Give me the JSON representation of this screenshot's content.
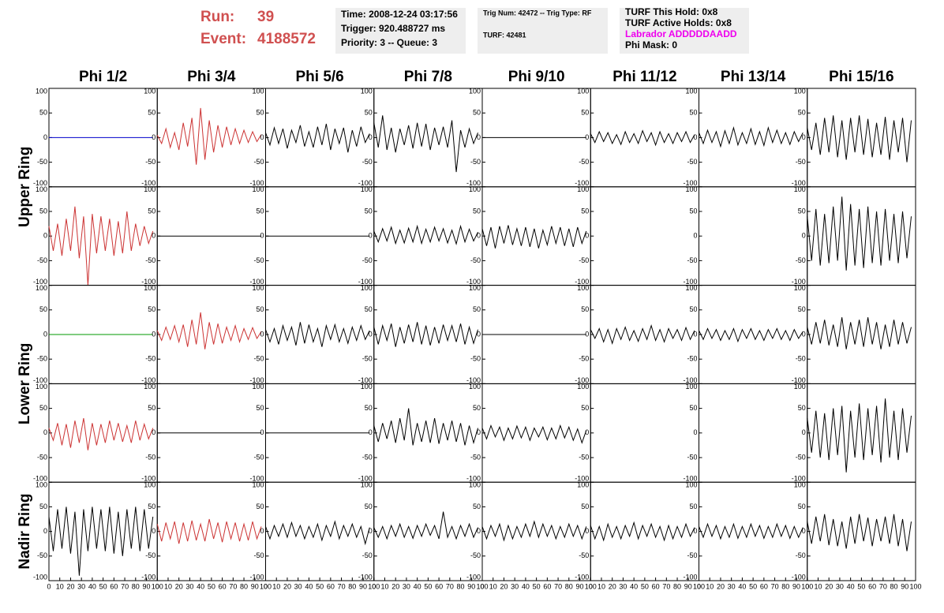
{
  "header": {
    "run_label": "Run:",
    "run": "39",
    "event_label": "Event:",
    "event": "4188572",
    "time_box": [
      "Time: 2008-12-24 03:17:56",
      "Trigger: 920.488727 ms",
      "Priority: 3 -- Queue: 3"
    ],
    "trig_box": [
      "Trig Num: 42472 -- Trig Type: RF",
      "TURF: 42481"
    ],
    "turf_box": [
      "TURF This Hold: 0x8",
      "TURF Active Holds: 0x8",
      "Labrador ADDDDDAADD",
      "Phi Mask: 0"
    ]
  },
  "chart_data": {
    "type": "line",
    "columns": [
      "Phi 1/2",
      "Phi 3/4",
      "Phi 5/6",
      "Phi 7/8",
      "Phi 9/10",
      "Phi 11/12",
      "Phi 13/14",
      "Phi 15/16"
    ],
    "row_labels": [
      "Upper Ring",
      "Lower Ring",
      "Nadir Ring"
    ],
    "x": [
      0,
      4,
      8,
      12,
      16,
      20,
      24,
      28,
      32,
      36,
      40,
      44,
      48,
      52,
      56,
      60,
      64,
      68,
      72,
      76,
      80,
      84,
      88,
      92,
      96
    ],
    "xlim": [
      0,
      100
    ],
    "xticks": [
      0,
      10,
      20,
      30,
      40,
      50,
      60,
      70,
      80,
      90,
      100
    ],
    "ylim": [
      -100,
      100
    ],
    "yticks": [
      -100,
      -50,
      0,
      50,
      100
    ],
    "panels": [
      [
        {
          "color": "#0000cc",
          "values": [
            0,
            0,
            0,
            0,
            0,
            0,
            0,
            0,
            0,
            0,
            0,
            0,
            0,
            0,
            0,
            0,
            0,
            0,
            0,
            0,
            0,
            0,
            0,
            0,
            0
          ]
        },
        {
          "color": "#cc3333",
          "values": [
            5,
            -12,
            18,
            -20,
            10,
            -25,
            30,
            -18,
            40,
            -55,
            60,
            -45,
            35,
            -30,
            25,
            -20,
            22,
            -15,
            18,
            -12,
            15,
            -10,
            12,
            -8,
            6
          ]
        },
        {
          "color": "#000000",
          "values": [
            10,
            -15,
            20,
            -12,
            18,
            -22,
            15,
            -10,
            25,
            -18,
            12,
            -20,
            22,
            -15,
            28,
            -25,
            18,
            -12,
            20,
            -30,
            15,
            -18,
            22,
            -10,
            8
          ]
        },
        {
          "color": "#000000",
          "values": [
            30,
            -20,
            45,
            -25,
            20,
            -30,
            18,
            -15,
            25,
            -22,
            30,
            -18,
            28,
            -25,
            20,
            -15,
            22,
            -20,
            35,
            -70,
            15,
            -20,
            18,
            -12,
            10
          ]
        },
        {
          "color": "#000000",
          "values": [
            0,
            0,
            0,
            0,
            0,
            0,
            0,
            0,
            0,
            0,
            0,
            0,
            0,
            0,
            0,
            0,
            0,
            0,
            0,
            0,
            0,
            0,
            0,
            0,
            0
          ]
        },
        {
          "color": "#000000",
          "values": [
            8,
            -10,
            12,
            -8,
            10,
            -12,
            6,
            -14,
            12,
            -10,
            8,
            -12,
            14,
            -8,
            10,
            -15,
            12,
            -10,
            8,
            -12,
            10,
            -8,
            12,
            -10,
            6
          ]
        },
        {
          "color": "#000000",
          "values": [
            10,
            -12,
            15,
            -10,
            12,
            -18,
            14,
            -12,
            20,
            -15,
            10,
            -12,
            18,
            -14,
            12,
            -16,
            20,
            -10,
            15,
            -12,
            10,
            -14,
            12,
            -8,
            10
          ]
        },
        {
          "color": "#000000",
          "values": [
            20,
            -25,
            30,
            -35,
            40,
            -30,
            45,
            -40,
            35,
            -45,
            40,
            -30,
            45,
            -35,
            38,
            -40,
            30,
            -35,
            42,
            -45,
            35,
            -30,
            40,
            -50,
            35
          ]
        }
      ],
      [
        {
          "color": "#cc3333",
          "values": [
            20,
            -30,
            25,
            -40,
            35,
            -30,
            60,
            -45,
            40,
            -100,
            45,
            -35,
            40,
            -30,
            35,
            -40,
            30,
            -35,
            50,
            -30,
            25,
            -20,
            20,
            -15,
            10
          ]
        },
        {
          "color": "#000000",
          "values": [
            0,
            0,
            0,
            0,
            0,
            0,
            0,
            0,
            0,
            0,
            0,
            0,
            0,
            0,
            0,
            0,
            0,
            0,
            0,
            0,
            0,
            0,
            0,
            0,
            0
          ]
        },
        {
          "color": "#000000",
          "values": [
            0,
            0,
            0,
            0,
            0,
            0,
            0,
            0,
            0,
            0,
            0,
            0,
            0,
            0,
            0,
            0,
            0,
            0,
            0,
            0,
            0,
            0,
            0,
            0,
            0
          ]
        },
        {
          "color": "#000000",
          "values": [
            10,
            -12,
            15,
            -10,
            18,
            -15,
            12,
            -14,
            16,
            -12,
            20,
            -15,
            14,
            -12,
            18,
            -10,
            15,
            -14,
            12,
            -16,
            20,
            -12,
            14,
            -10,
            8
          ]
        },
        {
          "color": "#000000",
          "values": [
            15,
            -20,
            18,
            -25,
            20,
            -15,
            22,
            -18,
            15,
            -20,
            18,
            -22,
            15,
            -25,
            12,
            -18,
            20,
            -15,
            18,
            -20,
            15,
            -22,
            18,
            -15,
            10
          ]
        },
        null,
        null,
        {
          "color": "#000000",
          "values": [
            40,
            -50,
            55,
            -60,
            45,
            -55,
            60,
            -50,
            80,
            -70,
            65,
            -60,
            55,
            -65,
            60,
            -55,
            50,
            -60,
            55,
            -50,
            45,
            -55,
            50,
            -45,
            40
          ]
        }
      ],
      [
        {
          "color": "#009900",
          "values": [
            0,
            0,
            0,
            0,
            0,
            0,
            0,
            0,
            0,
            0,
            0,
            0,
            0,
            0,
            0,
            0,
            0,
            0,
            0,
            0,
            0,
            0,
            0,
            0,
            0
          ]
        },
        {
          "color": "#cc3333",
          "values": [
            8,
            -12,
            15,
            -10,
            18,
            -15,
            20,
            -25,
            30,
            -20,
            45,
            -30,
            25,
            -20,
            22,
            -18,
            15,
            -12,
            18,
            -15,
            12,
            -10,
            14,
            -8,
            6
          ]
        },
        {
          "color": "#000000",
          "values": [
            10,
            -15,
            12,
            -20,
            18,
            -12,
            15,
            -22,
            25,
            -18,
            20,
            -15,
            12,
            -25,
            18,
            -10,
            20,
            -15,
            12,
            -18,
            15,
            -12,
            18,
            -10,
            8
          ]
        },
        {
          "color": "#000000",
          "values": [
            15,
            -20,
            18,
            -12,
            22,
            -25,
            15,
            -18,
            20,
            -15,
            25,
            -20,
            18,
            -22,
            15,
            -18,
            20,
            -12,
            18,
            -15,
            22,
            -20,
            15,
            -18,
            10
          ]
        },
        {
          "color": "#000000",
          "values": [
            0,
            0,
            0,
            0,
            0,
            0,
            0,
            0,
            0,
            0,
            0,
            0,
            0,
            0,
            0,
            0,
            0,
            0,
            0,
            0,
            0,
            0,
            0,
            0,
            0
          ]
        },
        {
          "color": "#000000",
          "values": [
            10,
            -8,
            12,
            -15,
            10,
            -18,
            12,
            -10,
            15,
            -12,
            8,
            -14,
            12,
            -10,
            18,
            -12,
            10,
            -15,
            12,
            -8,
            10,
            -12,
            14,
            -10,
            8
          ]
        },
        {
          "color": "#000000",
          "values": [
            8,
            -10,
            12,
            -8,
            10,
            -12,
            8,
            -10,
            12,
            -14,
            10,
            -8,
            12,
            -10,
            8,
            -12,
            10,
            -8,
            12,
            -10,
            8,
            -12,
            10,
            -8,
            6
          ]
        },
        {
          "color": "#000000",
          "values": [
            15,
            -20,
            25,
            -18,
            30,
            -22,
            20,
            -25,
            35,
            -30,
            25,
            -20,
            30,
            -25,
            35,
            -20,
            25,
            -30,
            20,
            -25,
            30,
            -20,
            25,
            -18,
            15
          ]
        }
      ],
      [
        {
          "color": "#cc3333",
          "values": [
            10,
            -15,
            20,
            -25,
            18,
            -30,
            25,
            -20,
            30,
            -35,
            20,
            -25,
            18,
            -20,
            25,
            -15,
            20,
            -18,
            15,
            -20,
            25,
            -15,
            18,
            -12,
            10
          ]
        },
        {
          "color": "#000000",
          "values": [
            0,
            0,
            0,
            0,
            0,
            0,
            0,
            0,
            0,
            0,
            0,
            0,
            0,
            0,
            0,
            0,
            0,
            0,
            0,
            0,
            0,
            0,
            0,
            0,
            0
          ]
        },
        {
          "color": "#000000",
          "values": [
            0,
            0,
            0,
            0,
            0,
            0,
            0,
            0,
            0,
            0,
            0,
            0,
            0,
            0,
            0,
            0,
            0,
            0,
            0,
            0,
            0,
            0,
            0,
            0,
            0
          ]
        },
        {
          "color": "#000000",
          "values": [
            15,
            -18,
            20,
            -12,
            25,
            -20,
            30,
            -15,
            50,
            -25,
            20,
            -18,
            25,
            -20,
            30,
            -22,
            20,
            -15,
            25,
            -18,
            20,
            -25,
            15,
            -20,
            10
          ]
        },
        {
          "color": "#000000",
          "values": [
            10,
            -12,
            15,
            -8,
            12,
            -15,
            10,
            -12,
            14,
            -10,
            12,
            -15,
            10,
            -8,
            12,
            -14,
            10,
            -12,
            15,
            -10,
            12,
            -15,
            8,
            -20,
            5
          ]
        },
        null,
        null,
        {
          "color": "#000000",
          "values": [
            30,
            -40,
            45,
            -50,
            40,
            -55,
            50,
            -45,
            55,
            -80,
            45,
            -50,
            60,
            -55,
            50,
            -45,
            55,
            -60,
            70,
            -50,
            45,
            -55,
            50,
            -40,
            35
          ]
        }
      ],
      [
        {
          "color": "#000000",
          "values": [
            30,
            -40,
            45,
            -35,
            50,
            -45,
            40,
            -90,
            45,
            -40,
            50,
            -35,
            45,
            -40,
            50,
            -45,
            40,
            -50,
            45,
            -35,
            50,
            -40,
            45,
            -35,
            30
          ]
        },
        {
          "color": "#cc3333",
          "values": [
            15,
            -20,
            18,
            -15,
            20,
            -25,
            18,
            -20,
            22,
            -18,
            15,
            -20,
            25,
            -15,
            18,
            -22,
            20,
            -15,
            18,
            -20,
            15,
            -18,
            20,
            -15,
            10
          ]
        },
        {
          "color": "#000000",
          "values": [
            10,
            -15,
            12,
            -10,
            15,
            -12,
            18,
            -10,
            12,
            -15,
            10,
            -12,
            15,
            -18,
            12,
            -10,
            20,
            -15,
            12,
            -10,
            15,
            -12,
            10,
            -25,
            8
          ]
        },
        {
          "color": "#000000",
          "values": [
            8,
            -12,
            10,
            -15,
            12,
            -10,
            15,
            -12,
            10,
            -14,
            12,
            -10,
            15,
            -8,
            12,
            -15,
            40,
            -12,
            10,
            -15,
            12,
            -10,
            15,
            -12,
            8
          ]
        },
        {
          "color": "#000000",
          "values": [
            10,
            -15,
            12,
            -10,
            15,
            -18,
            12,
            -15,
            10,
            -12,
            15,
            -10,
            20,
            -12,
            15,
            -10,
            12,
            -15,
            10,
            -12,
            15,
            -10,
            12,
            -15,
            10
          ]
        },
        {
          "color": "#000000",
          "values": [
            12,
            -15,
            10,
            -18,
            15,
            -12,
            10,
            -15,
            12,
            -10,
            18,
            -15,
            12,
            -10,
            15,
            -12,
            10,
            -18,
            12,
            -15,
            10,
            -12,
            15,
            -10,
            8
          ]
        },
        {
          "color": "#000000",
          "values": [
            10,
            -12,
            15,
            -10,
            12,
            -15,
            10,
            -12,
            15,
            -14,
            10,
            -12,
            15,
            -10,
            12,
            -14,
            10,
            -12,
            15,
            -10,
            12,
            -14,
            10,
            -12,
            8
          ]
        },
        {
          "color": "#000000",
          "values": [
            20,
            -25,
            30,
            -20,
            35,
            -28,
            25,
            -30,
            20,
            -35,
            30,
            -25,
            35,
            -20,
            28,
            -30,
            25,
            -20,
            30,
            -25,
            35,
            -30,
            25,
            -40,
            20
          ]
        }
      ]
    ]
  }
}
